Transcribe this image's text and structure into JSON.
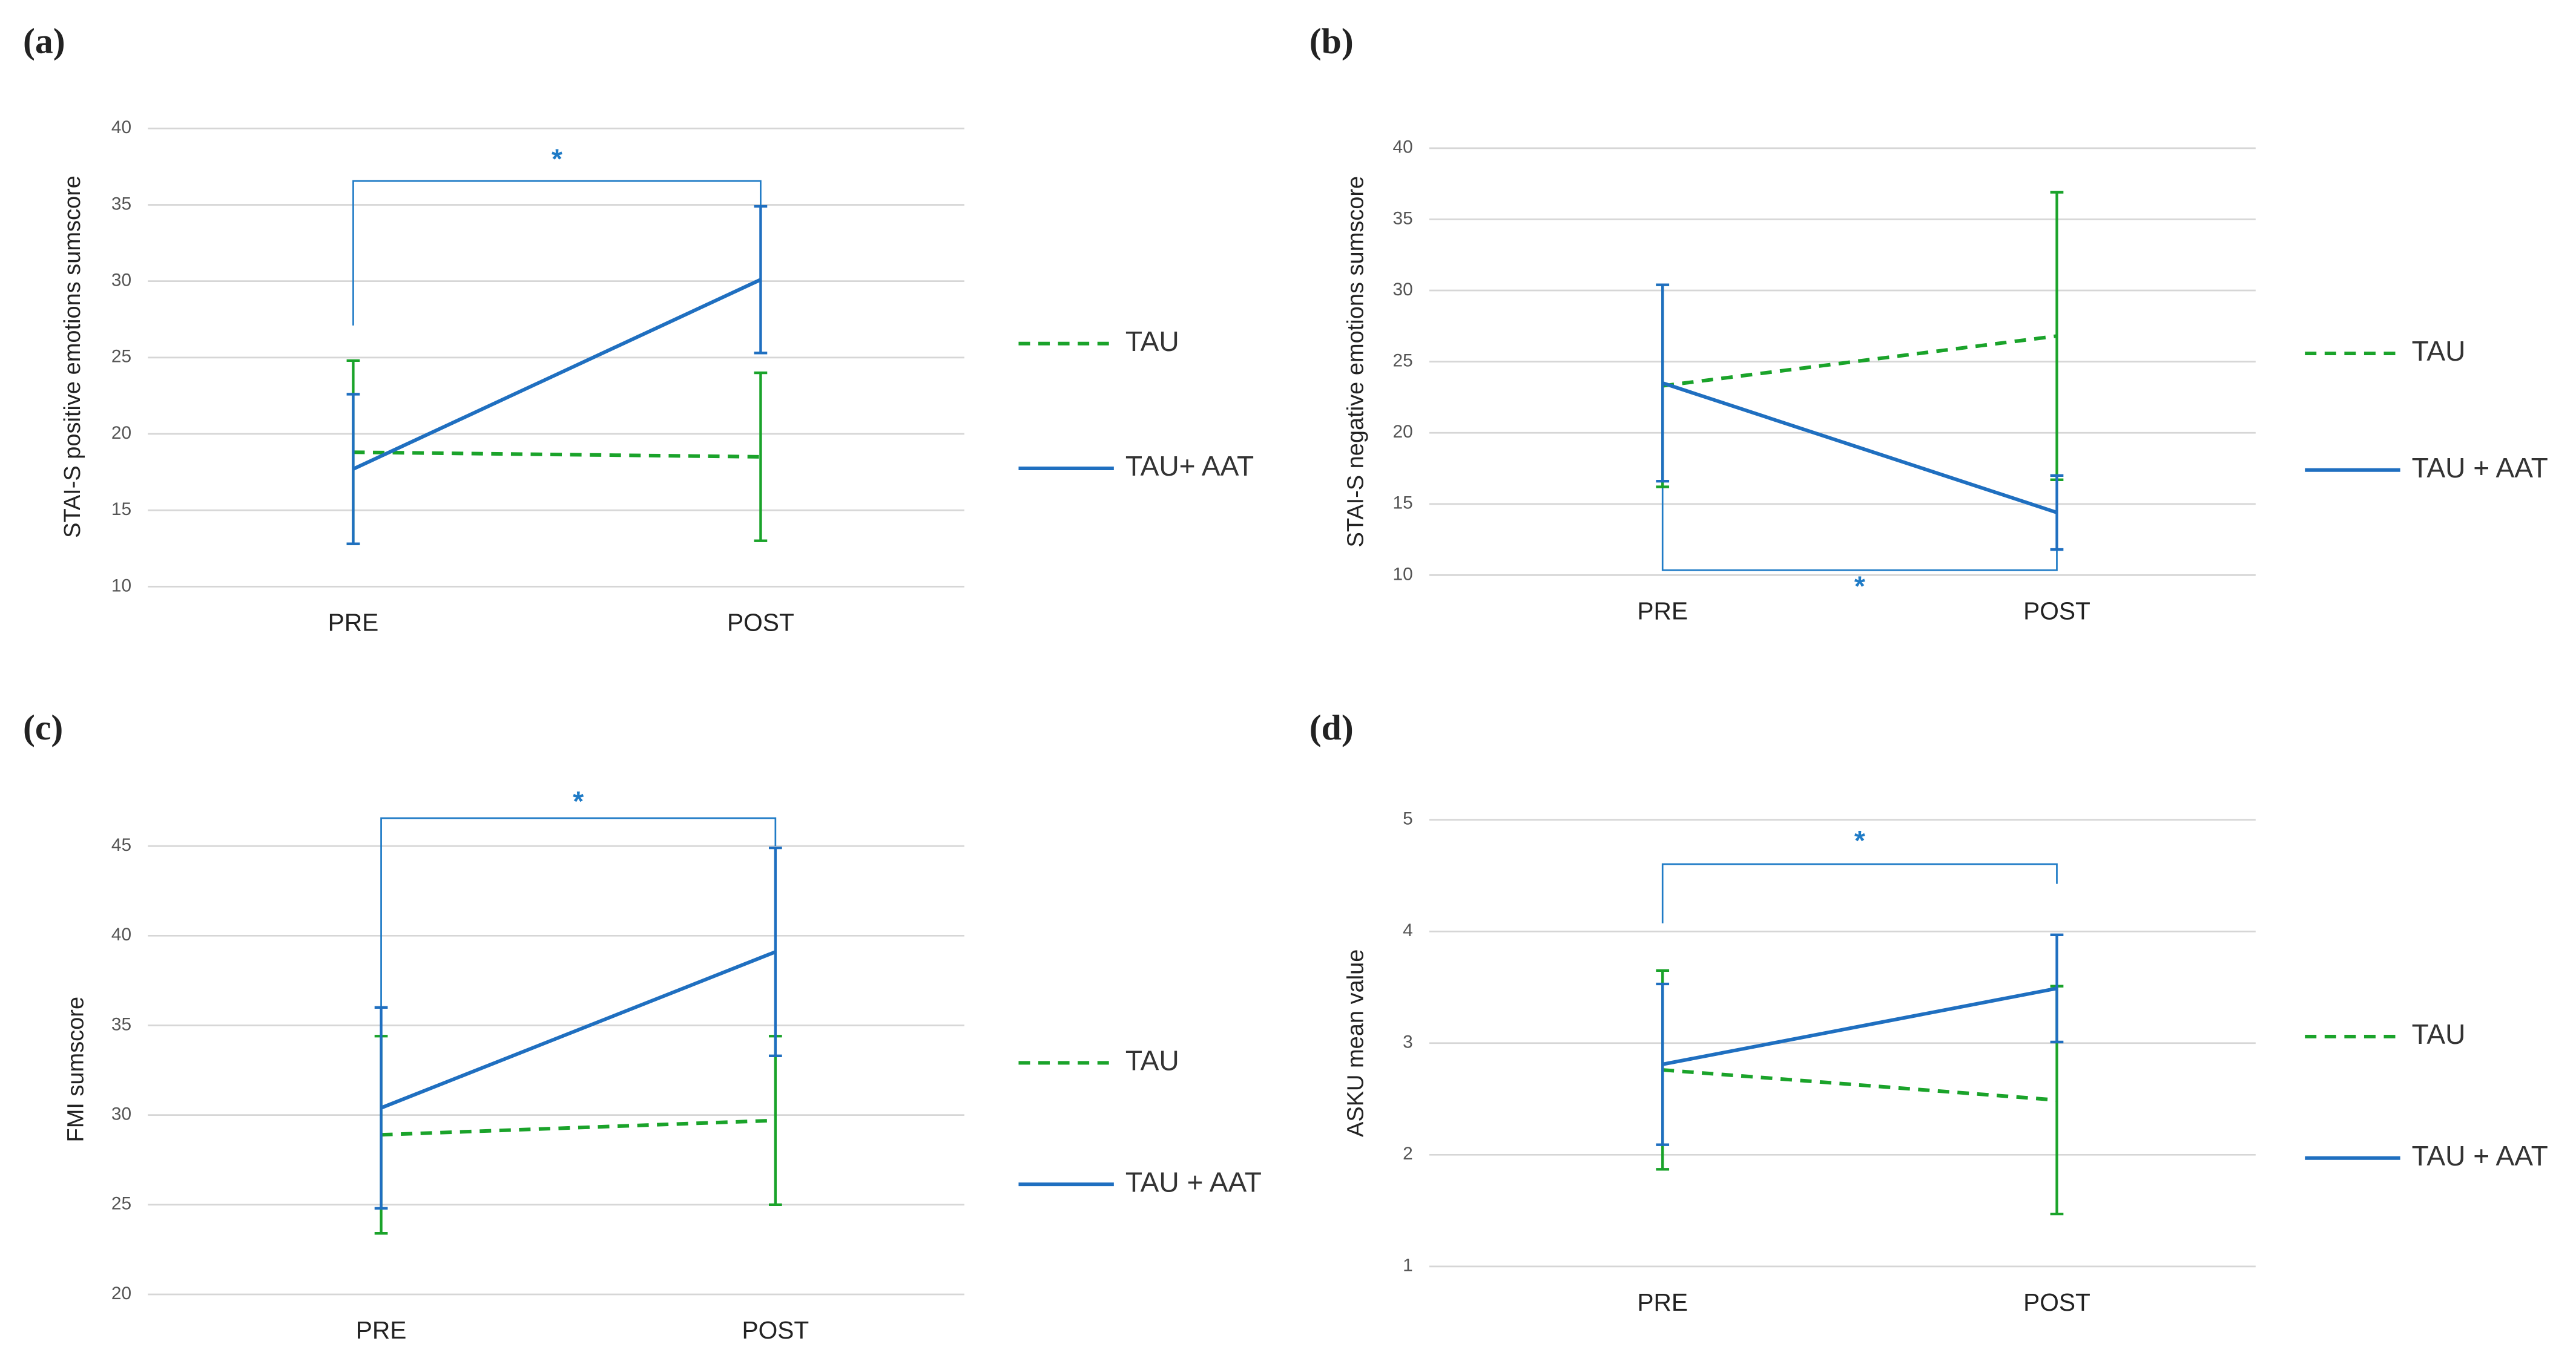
{
  "chart_data": [
    {
      "type": "line",
      "panel": "(a)",
      "y_label": "STAI-S positive emotions sumscore",
      "categories": [
        "PRE",
        "POST"
      ],
      "ylim": [
        10,
        40
      ],
      "yticks": [
        10,
        15,
        20,
        25,
        30,
        35,
        40
      ],
      "grid": true,
      "significance": "*",
      "series": [
        {
          "name": "TAU",
          "color": "#1aa32a",
          "dashed": true,
          "values": [
            18.8,
            18.5
          ],
          "errors": [
            6.0,
            5.5
          ]
        },
        {
          "name": "TAU+ AAT",
          "color": "#1f6fc0",
          "dashed": false,
          "values": [
            17.7,
            30.1
          ],
          "errors": [
            4.9,
            4.8
          ]
        }
      ]
    },
    {
      "type": "line",
      "panel": "(b)",
      "y_label": "STAI-S negative emotions sumscore",
      "categories": [
        "PRE",
        "POST"
      ],
      "ylim": [
        10,
        40
      ],
      "yticks": [
        10,
        15,
        20,
        25,
        30,
        35,
        40
      ],
      "grid": true,
      "significance": "*",
      "series": [
        {
          "name": "TAU",
          "color": "#1aa32a",
          "dashed": true,
          "values": [
            23.3,
            26.8
          ],
          "errors": [
            7.1,
            10.1
          ]
        },
        {
          "name": "TAU + AAT",
          "color": "#1f6fc0",
          "dashed": false,
          "values": [
            23.5,
            14.4
          ],
          "errors": [
            6.9,
            2.6
          ]
        }
      ]
    },
    {
      "type": "line",
      "panel": "(c)",
      "y_label": "FMI sumscore",
      "categories": [
        "PRE",
        "POST"
      ],
      "ylim": [
        20,
        45
      ],
      "yticks": [
        20,
        25,
        30,
        35,
        40,
        45
      ],
      "grid": true,
      "significance": "*",
      "series": [
        {
          "name": "TAU",
          "color": "#1aa32a",
          "dashed": true,
          "values": [
            28.9,
            29.7
          ],
          "errors": [
            5.5,
            4.7
          ]
        },
        {
          "name": "TAU + AAT",
          "color": "#1f6fc0",
          "dashed": false,
          "values": [
            30.4,
            39.1
          ],
          "errors": [
            5.6,
            5.8
          ]
        }
      ]
    },
    {
      "type": "line",
      "panel": "(d)",
      "y_label": "ASKU mean value",
      "categories": [
        "PRE",
        "POST"
      ],
      "ylim": [
        1,
        5
      ],
      "yticks": [
        1,
        2,
        3,
        4,
        5
      ],
      "grid": true,
      "significance": "*",
      "series": [
        {
          "name": "TAU",
          "color": "#1aa32a",
          "dashed": true,
          "values": [
            2.76,
            2.49
          ],
          "errors": [
            0.89,
            1.02
          ]
        },
        {
          "name": "TAU + AAT",
          "color": "#1f6fc0",
          "dashed": false,
          "values": [
            2.81,
            3.49
          ],
          "errors": [
            0.72,
            0.48
          ]
        }
      ]
    }
  ]
}
